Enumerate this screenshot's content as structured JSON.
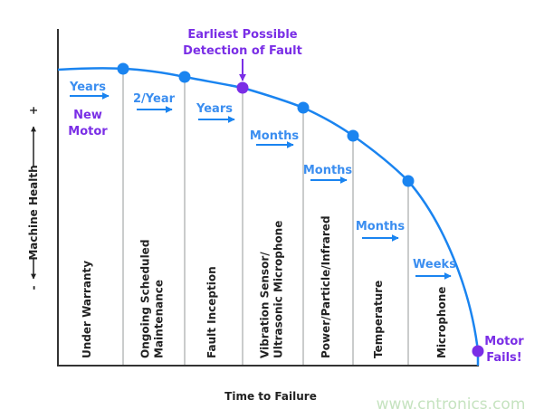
{
  "colors": {
    "curve": "#1a84f0",
    "highlight": "#7a2ee6",
    "axis": "#333333",
    "divider": "#b8bcbc"
  },
  "axes": {
    "y_label": "Machine Health",
    "y_plus": "+",
    "y_minus": "-",
    "x_label": "Time to Failure"
  },
  "annotations": {
    "detection": [
      "Earliest Possible",
      "Detection of Fault"
    ],
    "start": [
      "New",
      "Motor"
    ],
    "end": [
      "Motor",
      "Fails!"
    ]
  },
  "stages": [
    {
      "lines": [
        "Under Warranty"
      ],
      "rate": "Years"
    },
    {
      "lines": [
        "Ongoing Scheduled",
        "Maintenance"
      ],
      "rate": "2/Year"
    },
    {
      "lines": [
        "Fault Inception"
      ],
      "rate": "Years"
    },
    {
      "lines": [
        "Vibration Sensor/",
        "Ultrasonic Microphone"
      ],
      "rate": "Months"
    },
    {
      "lines": [
        "Power/Particle/Infrared"
      ],
      "rate": "Months"
    },
    {
      "lines": [
        "Temperature"
      ],
      "rate": "Months"
    },
    {
      "lines": [
        "Microphone"
      ],
      "rate": "Weeks"
    }
  ],
  "watermark": "www.cntronics.com"
}
